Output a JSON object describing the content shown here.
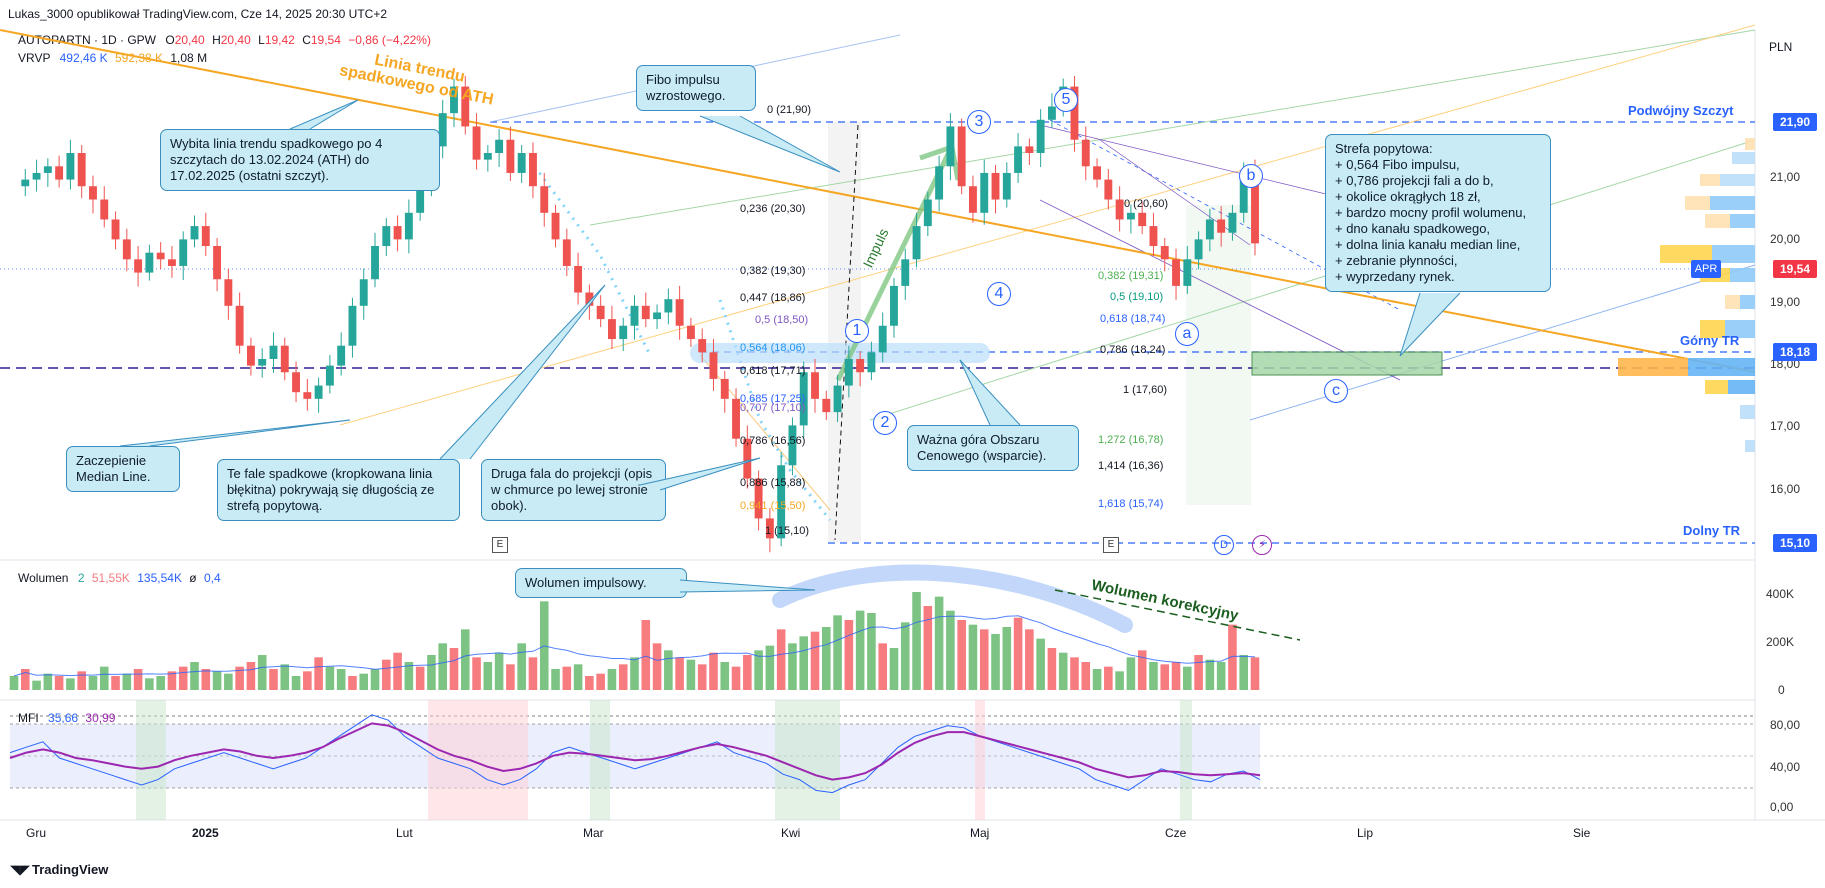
{
  "header": {
    "publisher": "Lukas_3000 opublikował TradingView.com, Cze 14, 2025 20:30 UTC+2",
    "symbol": "AUTOPARTN · 1D · GPW",
    "o_label": "O",
    "o_val": "20,40",
    "h_label": "H",
    "h_val": "20,40",
    "l_label": "L",
    "l_val": "19,42",
    "c_label": "C",
    "c_val": "19,54",
    "change": "−0,86 (−4,22%)",
    "vrvp_label": "VRVP",
    "vrvp_v1": "492,46 K",
    "vrvp_v2": "592,38 K",
    "vrvp_v3": "1,08 M",
    "currency": "PLN"
  },
  "price_axis": {
    "ticks": [
      "21,00",
      "20,00",
      "19,00",
      "18,00",
      "17,00",
      "16,00"
    ],
    "tags": [
      {
        "text": "21,90",
        "color": "#2962ff"
      },
      {
        "text": "19,54",
        "color": "#f23645"
      },
      {
        "text": "APR",
        "color": "#2962ff"
      },
      {
        "text": "18,18",
        "color": "#2962ff"
      },
      {
        "text": "15,10",
        "color": "#2962ff"
      }
    ]
  },
  "level_labels": {
    "top": "Podwójny Szczyt",
    "mid": "Górny TR",
    "bottom": "Dolny TR"
  },
  "fib_left": [
    {
      "text": "0 (21,90)",
      "color": "#131722"
    },
    {
      "text": "0,236 (20,30)",
      "color": "#131722"
    },
    {
      "text": "0,382 (19,30)",
      "color": "#131722"
    },
    {
      "text": "0,447 (18,86)",
      "color": "#131722"
    },
    {
      "text": "0,5 (18,50)",
      "color": "#7e57c2"
    },
    {
      "text": "0,564 (18,06)",
      "color": "#2196f3"
    },
    {
      "text": "0,618 (17,71)",
      "color": "#131722"
    },
    {
      "text": "0,685 (17,25)",
      "color": "#2962ff"
    },
    {
      "text": "0,707 (17,10)",
      "color": "#7e57c2"
    },
    {
      "text": "0,786 (16,56)",
      "color": "#131722"
    },
    {
      "text": "0,886 (15,88)",
      "color": "#131722"
    },
    {
      "text": "0,941 (15,50)",
      "color": "#f5a623"
    },
    {
      "text": "1 (15,10)",
      "color": "#131722"
    }
  ],
  "fib_right": [
    {
      "text": "0 (20,60)",
      "color": "#131722"
    },
    {
      "text": "0,382 (19,31)",
      "color": "#4caf50"
    },
    {
      "text": "0,5 (19,10)",
      "color": "#089981"
    },
    {
      "text": "0,618 (18,74)",
      "color": "#2962ff"
    },
    {
      "text": "0,786 (18,24)",
      "color": "#131722"
    },
    {
      "text": "1 (17,60)",
      "color": "#131722"
    },
    {
      "text": "1,272 (16,78)",
      "color": "#4caf50"
    },
    {
      "text": "1,414 (16,36)",
      "color": "#131722"
    },
    {
      "text": "1,618 (15,74)",
      "color": "#2962ff"
    }
  ],
  "annotations": {
    "trend_label": "Linia trendu\nspadkowego od ATH",
    "impulse_word": "Impuls",
    "vol_corr": "Wolumen korekcyjny"
  },
  "callouts": {
    "c1": "Wybita linia trendu spadkowego po 4 szczytach do 13.02.2024 (ATH) do 17.02.2025 (ostatni szczyt).",
    "c2": "Fibo impulsu wzrostowego.",
    "c3": "Zaczepienie Median Line.",
    "c4": "Te fale spadkowe (kropkowana linia błękitna) pokrywają się długością ze strefą popytową.",
    "c5": "Druga fala do projekcji (opis w chmurce po lewej stronie obok).",
    "c6": "Ważna góra Obszaru Cenowego (wsparcie).",
    "c7": "Strefa popytowa:\n+ 0,564 Fibo impulsu,\n+ 0,786 projekcji fali a do b,\n+ okolice okrągłych 18 zł,\n+ bardzo mocny profil wolumenu,\n+ dno kanału spadkowego,\n+ dolna linia kanału median line,\n+ zebranie płynności,\n+ wyprzedany rynek.",
    "c8": "Wolumen impulsowy."
  },
  "waves": [
    "1",
    "2",
    "3",
    "4",
    "5",
    "a",
    "b",
    "c"
  ],
  "events": [
    "E",
    "E",
    "D"
  ],
  "volume_legend": {
    "label": "Wolumen",
    "v1": "2",
    "v2": "51,55K",
    "v3": "135,54K",
    "v4": "ø",
    "v5": "0,4",
    "ticks": [
      "400K",
      "200K",
      "0"
    ]
  },
  "mfi_legend": {
    "label": "MFI",
    "v1": "35,66",
    "v2": "30,99",
    "ticks": [
      "80,00",
      "40,00",
      "0,00"
    ]
  },
  "time_axis": [
    "Gru",
    "2025",
    "Lut",
    "Mar",
    "Kwi",
    "Maj",
    "Cze",
    "Lip",
    "Sie"
  ],
  "footer": "TradingView",
  "colors": {
    "up": "#26a69a",
    "down": "#ef5350",
    "vol_up": "#7dc383",
    "vol_down": "#f77c80",
    "trend": "#f5a623",
    "level": "#2962ff",
    "purple": "#7b1fa2",
    "mfi_blue": "#2962ff"
  },
  "chart_data": [
    {
      "type": "candlestick",
      "symbol": "AUTOPARTN",
      "interval": "1D",
      "currency": "PLN",
      "ylim": [
        15.0,
        22.3
      ],
      "levels": {
        "double_top": 21.9,
        "upper_range": 18.18,
        "lower_range": 15.1,
        "last": 19.54
      },
      "close_path": [
        20.4,
        20.5,
        20.6,
        20.7,
        20.5,
        20.9,
        20.4,
        20.2,
        19.9,
        19.6,
        19.3,
        19.1,
        19.4,
        19.3,
        19.2,
        19.6,
        19.8,
        19.5,
        19.0,
        18.6,
        18.0,
        17.7,
        17.8,
        18.0,
        17.6,
        17.3,
        17.2,
        17.4,
        17.7,
        18.0,
        18.6,
        19.0,
        19.5,
        19.8,
        19.6,
        20.0,
        20.4,
        21.0,
        21.5,
        21.9,
        21.3,
        20.8,
        20.9,
        21.1,
        20.6,
        20.9,
        20.4,
        20.0,
        19.6,
        19.2,
        18.8,
        18.6,
        18.4,
        18.1,
        18.3,
        18.6,
        18.4,
        18.5,
        18.7,
        18.3,
        18.1,
        17.9,
        17.5,
        17.2,
        16.6,
        16.0,
        15.4,
        15.1,
        16.2,
        16.8,
        17.6,
        17.2,
        17.0,
        17.4,
        17.8,
        17.6,
        17.9,
        18.3,
        18.9,
        19.3,
        19.8,
        20.2,
        20.7,
        21.3,
        20.4,
        20.0,
        20.6,
        20.2,
        20.6,
        21.0,
        20.9,
        21.4,
        21.6,
        21.9,
        21.1,
        20.7,
        20.5,
        20.2,
        19.9,
        20.0,
        19.8,
        19.5,
        19.3,
        18.9,
        19.3,
        19.6,
        19.9,
        19.7,
        20.0,
        20.6,
        19.54
      ],
      "waves": [
        {
          "label": "1",
          "price": 17.4
        },
        {
          "label": "2",
          "price": 16.9
        },
        {
          "label": "3",
          "price": 21.8
        },
        {
          "label": "4",
          "price": 19.0
        },
        {
          "label": "5",
          "price": 22.3
        },
        {
          "label": "a",
          "price": 18.45
        },
        {
          "label": "b",
          "price": 21.0
        },
        {
          "label": "c",
          "price": 17.25
        }
      ]
    },
    {
      "type": "bar",
      "title": "Wolumen",
      "ylim": [
        0,
        450000
      ],
      "values": [
        60,
        90,
        40,
        70,
        60,
        50,
        80,
        60,
        100,
        60,
        70,
        90,
        50,
        60,
        80,
        100,
        120,
        90,
        80,
        70,
        100,
        120,
        150,
        90,
        110,
        60,
        80,
        140,
        100,
        90,
        60,
        70,
        90,
        130,
        160,
        120,
        100,
        150,
        200,
        180,
        260,
        140,
        120,
        160,
        110,
        200,
        140,
        380,
        90,
        100,
        110,
        60,
        70,
        90,
        110,
        140,
        300,
        200,
        170,
        140,
        130,
        110,
        160,
        120,
        100,
        150,
        170,
        190,
        260,
        200,
        230,
        250,
        270,
        320,
        300,
        340,
        330,
        200,
        180,
        290,
        420,
        360,
        400,
        340,
        300,
        280,
        260,
        240,
        270,
        310,
        260,
        220,
        180,
        160,
        140,
        120,
        90,
        100,
        80,
        140,
        170,
        120,
        110,
        120,
        100,
        150,
        130,
        120,
        280,
        150,
        140
      ],
      "up_flags": [
        1,
        0,
        1,
        1,
        0,
        1,
        0,
        1,
        1,
        0,
        1,
        0,
        1,
        1,
        0,
        0,
        1,
        0,
        1,
        1,
        0,
        0,
        1,
        0,
        1,
        1,
        0,
        0,
        1,
        1,
        0,
        1,
        1,
        0,
        0,
        1,
        0,
        1,
        1,
        0,
        1,
        0,
        1,
        1,
        0,
        1,
        0,
        1,
        1,
        0,
        1,
        0,
        0,
        1,
        0,
        1,
        0,
        0,
        1,
        0,
        1,
        0,
        0,
        1,
        0,
        0,
        1,
        1,
        0,
        1,
        1,
        0,
        1,
        1,
        0,
        1,
        1,
        0,
        1,
        1,
        1,
        0,
        1,
        1,
        0,
        1,
        0,
        1,
        1,
        0,
        0,
        1,
        0,
        1,
        0,
        0,
        1,
        0,
        1,
        1,
        0,
        1,
        0,
        0,
        1,
        0,
        1,
        1,
        0,
        1,
        0
      ]
    },
    {
      "type": "line",
      "title": "MFI",
      "ylim": [
        0,
        100
      ],
      "series": [
        {
          "values": [
            55,
            60,
            65,
            50,
            45,
            40,
            35,
            30,
            25,
            30,
            40,
            45,
            50,
            55,
            50,
            45,
            40,
            45,
            50,
            60,
            70,
            80,
            90,
            85,
            70,
            60,
            50,
            45,
            40,
            30,
            25,
            30,
            40,
            55,
            60,
            55,
            50,
            45,
            40,
            45,
            50,
            55,
            60,
            65,
            55,
            50,
            45,
            35,
            30,
            20,
            18,
            25,
            30,
            45,
            60,
            70,
            75,
            80,
            78,
            70,
            65,
            60,
            55,
            50,
            45,
            40,
            30,
            25,
            20,
            30,
            40,
            35,
            30,
            28,
            35,
            38,
            30
          ]
        },
        {
          "values": [
            50,
            55,
            58,
            55,
            50,
            48,
            45,
            42,
            40,
            42,
            48,
            52,
            55,
            58,
            56,
            52,
            50,
            52,
            55,
            60,
            68,
            75,
            82,
            80,
            74,
            66,
            58,
            52,
            48,
            42,
            38,
            40,
            45,
            52,
            55,
            54,
            52,
            50,
            48,
            49,
            52,
            56,
            60,
            63,
            60,
            56,
            52,
            46,
            40,
            34,
            30,
            32,
            36,
            44,
            55,
            64,
            70,
            74,
            74,
            70,
            66,
            62,
            58,
            54,
            50,
            46,
            40,
            36,
            32,
            34,
            38,
            37,
            35,
            34,
            35,
            36,
            34
          ]
        }
      ]
    }
  ]
}
